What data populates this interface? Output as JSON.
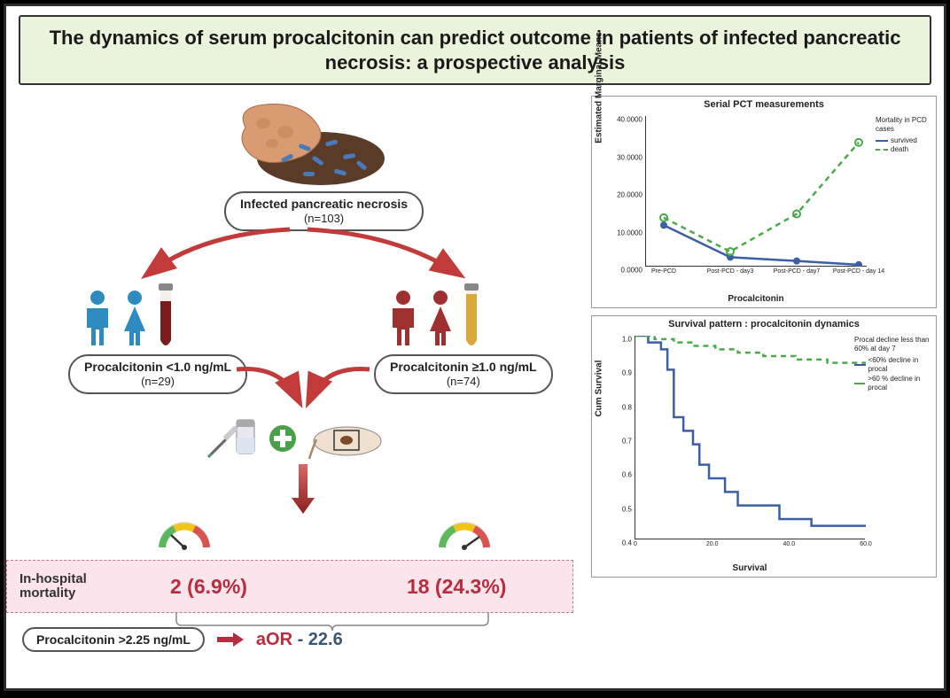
{
  "title": "The dynamics of serum procalcitonin can predict outcome in patients of infected pancreatic necrosis: a prospective analysis",
  "cohort": {
    "label": "Infected pancreatic necrosis",
    "n": "(n=103)"
  },
  "groups": {
    "low": {
      "label": "Procalcitonin <1.0 ng/mL",
      "n": "(n=29)",
      "color": "#2e8bc0"
    },
    "high": {
      "label": "Procalcitonin ≥1.0 ng/mL",
      "n": "(n=74)",
      "color": "#a03030"
    }
  },
  "mortality": {
    "label": "In-hospital mortality",
    "low": "2 (6.9%)",
    "high": "18 (24.3%)"
  },
  "aor": {
    "threshold": "Procalcitonin >2.25 ng/mL",
    "label": "aOR",
    "value": "- 22.6"
  },
  "chart1": {
    "title": "Serial PCT measurements",
    "ylabel": "Estimated Marginal Means",
    "xlabel": "Procalcitonin",
    "ylim": [
      0,
      40
    ],
    "yticks": [
      "0.0000",
      "10.0000",
      "20.0000",
      "30.0000",
      "40.0000"
    ],
    "xticks": [
      "Pre-PCD",
      "Post-PCD - day3",
      "Post-PCD - day7",
      "Post-PCD - day 14"
    ],
    "legend_title": "Mortality in PCD cases",
    "series": {
      "survived": {
        "label": "survived",
        "color": "#3a5fa5",
        "dash": "0",
        "values": [
          11,
          2.5,
          1.5,
          0.5
        ]
      },
      "death": {
        "label": "death",
        "color": "#4ba84b",
        "dash": "5,4",
        "values": [
          13,
          4,
          14,
          33
        ]
      }
    }
  },
  "chart2": {
    "title": "Survival pattern : procalcitonin dynamics",
    "ylabel": "Cum Survival",
    "xlabel": "Survival",
    "ylim": [
      0.4,
      1.0
    ],
    "yticks": [
      "0.4",
      "0.5",
      "0.6",
      "0.7",
      "0.8",
      "0.9",
      "1.0"
    ],
    "xticks": [
      "0",
      "20.0",
      "40.0",
      "60.0"
    ],
    "legend_title": "Procal decline less than 60% at day 7",
    "series": {
      "lt60": {
        "label": "<60% decline in procal",
        "color": "#3a5fa5",
        "dash": "0"
      },
      "gt60": {
        "label": ">60 % decline in procal",
        "color": "#4ba84b",
        "dash": "5,4"
      }
    }
  },
  "colors": {
    "arrow": "#c23a3a",
    "plus_bg": "#4aa04a",
    "gauge_green": "#5cb85c",
    "gauge_yellow": "#f0c419",
    "gauge_red": "#d9534f"
  }
}
